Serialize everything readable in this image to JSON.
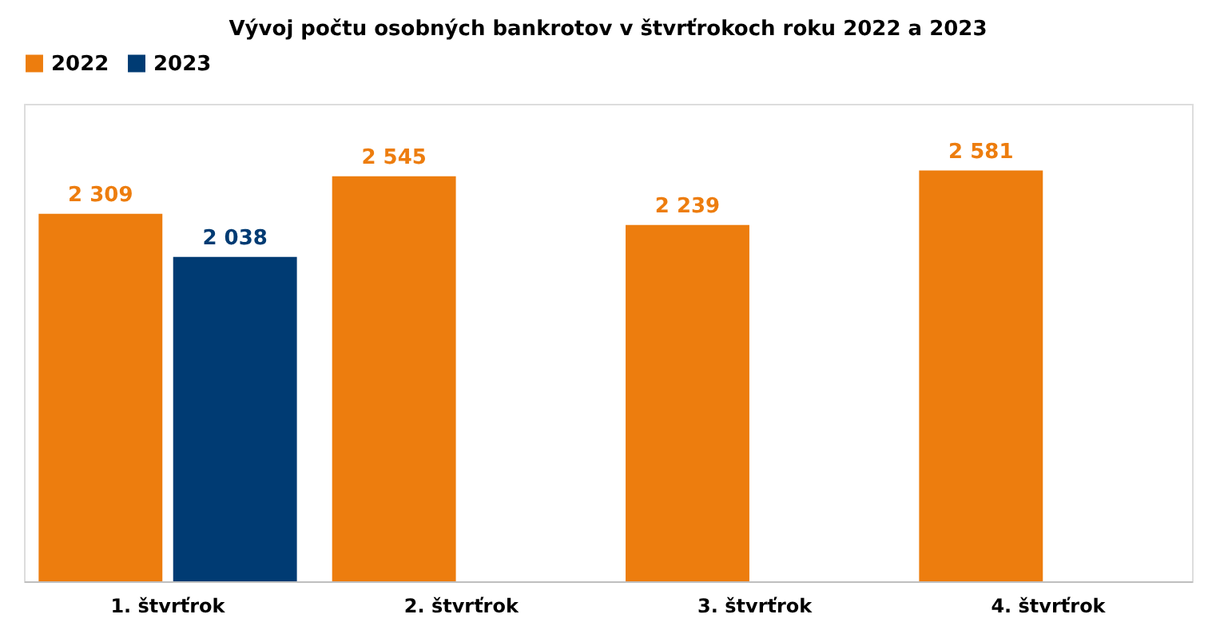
{
  "chart_data": {
    "type": "bar",
    "title": "Vývoj počtu osobných bankrotov v štvrťrokoch roku 2022 a 2023",
    "categories": [
      "1. štvrťrok",
      "2. štvrťrok",
      "3. štvrťrok",
      "4. štvrťrok"
    ],
    "series": [
      {
        "name": "2022",
        "color": "#ed7d0e",
        "values": [
          2309,
          2545,
          2239,
          2581
        ],
        "value_labels": [
          "2 309",
          "2 545",
          "2 239",
          "2 581"
        ]
      },
      {
        "name": "2023",
        "color": "#003b73",
        "values": [
          2038,
          null,
          null,
          null
        ],
        "value_labels": [
          "2 038",
          null,
          null,
          null
        ]
      }
    ],
    "ylim": [
      0,
      3000
    ],
    "tick_labels": "x",
    "legend": "top",
    "grid": false
  }
}
